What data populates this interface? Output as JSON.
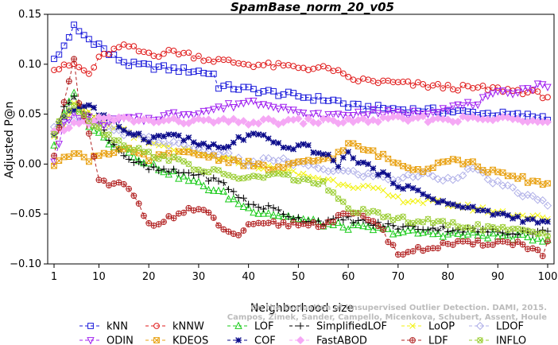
{
  "chart_data": {
    "type": "line",
    "title": "SpamBase_norm_20_v05",
    "xlabel": "Neighborhood size",
    "ylabel": "Adjusted P@n",
    "xlim": [
      1,
      100
    ],
    "ylim": [
      -0.1,
      0.15
    ],
    "xticks": [
      1,
      10,
      20,
      30,
      40,
      50,
      60,
      70,
      80,
      90,
      100
    ],
    "yticks": [
      -0.1,
      -0.05,
      0.0,
      0.05,
      0.1,
      0.15
    ],
    "ytick_labels": [
      "−0.10",
      "−0.05",
      "0.00",
      "0.05",
      "0.10",
      "0.15"
    ],
    "legend_position": "bottom",
    "watermark": [
      "Campos, Zimek, Sander, Campello, Micenkova, Schubert, Assent, Houle",
      "On the Evaluation of Unsupervised Outlier Detection. DAMI, 2015."
    ],
    "series": [
      {
        "name": "kNN",
        "color": "#1a1adb",
        "marker": "square",
        "knots": [
          [
            1,
            0.105
          ],
          [
            2,
            0.11
          ],
          [
            3,
            0.12
          ],
          [
            4,
            0.125
          ],
          [
            5,
            0.138
          ],
          [
            6,
            0.133
          ],
          [
            8,
            0.125
          ],
          [
            10,
            0.12
          ],
          [
            12,
            0.11
          ],
          [
            16,
            0.1
          ],
          [
            20,
            0.098
          ],
          [
            25,
            0.095
          ],
          [
            30,
            0.093
          ],
          [
            33,
            0.09
          ],
          [
            34,
            0.078
          ],
          [
            40,
            0.075
          ],
          [
            50,
            0.068
          ],
          [
            58,
            0.063
          ],
          [
            60,
            0.058
          ],
          [
            70,
            0.055
          ],
          [
            80,
            0.053
          ],
          [
            90,
            0.05
          ],
          [
            100,
            0.047
          ]
        ]
      },
      {
        "name": "kNNW",
        "color": "#e01b1b",
        "marker": "circle",
        "knots": [
          [
            1,
            0.095
          ],
          [
            3,
            0.097
          ],
          [
            5,
            0.1
          ],
          [
            8,
            0.09
          ],
          [
            10,
            0.105
          ],
          [
            12,
            0.112
          ],
          [
            14,
            0.116
          ],
          [
            16,
            0.118
          ],
          [
            18,
            0.113
          ],
          [
            22,
            0.11
          ],
          [
            25,
            0.113
          ],
          [
            28,
            0.11
          ],
          [
            32,
            0.105
          ],
          [
            40,
            0.1
          ],
          [
            50,
            0.097
          ],
          [
            57,
            0.095
          ],
          [
            60,
            0.085
          ],
          [
            70,
            0.081
          ],
          [
            80,
            0.077
          ],
          [
            90,
            0.075
          ],
          [
            95,
            0.073
          ],
          [
            100,
            0.068
          ]
        ]
      },
      {
        "name": "LOF",
        "color": "#1acb1a",
        "marker": "triangle-up",
        "knots": [
          [
            1,
            0.02
          ],
          [
            3,
            0.05
          ],
          [
            5,
            0.07
          ],
          [
            7,
            0.045
          ],
          [
            10,
            0.03
          ],
          [
            12,
            0.022
          ],
          [
            15,
            0.015
          ],
          [
            20,
            0.0
          ],
          [
            25,
            -0.01
          ],
          [
            30,
            -0.02
          ],
          [
            35,
            -0.03
          ],
          [
            40,
            -0.045
          ],
          [
            45,
            -0.05
          ],
          [
            50,
            -0.055
          ],
          [
            55,
            -0.06
          ],
          [
            60,
            -0.063
          ],
          [
            65,
            -0.065
          ],
          [
            70,
            -0.068
          ],
          [
            80,
            -0.07
          ],
          [
            90,
            -0.072
          ],
          [
            100,
            -0.075
          ]
        ]
      },
      {
        "name": "SimplifiedLOF",
        "color": "#000000",
        "marker": "plus",
        "knots": [
          [
            1,
            0.03
          ],
          [
            3,
            0.06
          ],
          [
            5,
            0.065
          ],
          [
            8,
            0.05
          ],
          [
            10,
            0.04
          ],
          [
            13,
            0.02
          ],
          [
            16,
            0.005
          ],
          [
            20,
            -0.005
          ],
          [
            25,
            -0.008
          ],
          [
            30,
            -0.01
          ],
          [
            35,
            -0.02
          ],
          [
            40,
            -0.04
          ],
          [
            45,
            -0.045
          ],
          [
            50,
            -0.055
          ],
          [
            55,
            -0.058
          ],
          [
            60,
            -0.055
          ],
          [
            65,
            -0.06
          ],
          [
            70,
            -0.063
          ],
          [
            80,
            -0.065
          ],
          [
            90,
            -0.068
          ],
          [
            100,
            -0.068
          ]
        ]
      },
      {
        "name": "LoOP",
        "color": "#f2f20d",
        "marker": "cross",
        "knots": [
          [
            1,
            0.03
          ],
          [
            3,
            0.04
          ],
          [
            5,
            0.06
          ],
          [
            8,
            0.05
          ],
          [
            10,
            0.04
          ],
          [
            15,
            0.035
          ],
          [
            20,
            0.02
          ],
          [
            25,
            0.015
          ],
          [
            30,
            0.01
          ],
          [
            35,
            0.005
          ],
          [
            40,
            0.0
          ],
          [
            45,
            -0.005
          ],
          [
            50,
            -0.01
          ],
          [
            55,
            -0.015
          ],
          [
            60,
            -0.02
          ],
          [
            65,
            -0.025
          ],
          [
            70,
            -0.035
          ],
          [
            80,
            -0.04
          ],
          [
            90,
            -0.048
          ],
          [
            100,
            -0.055
          ]
        ]
      },
      {
        "name": "LDOF",
        "color": "#b0b0e8",
        "marker": "diamond",
        "knots": [
          [
            1,
            0.04
          ],
          [
            5,
            0.045
          ],
          [
            10,
            0.04
          ],
          [
            15,
            0.03
          ],
          [
            20,
            0.025
          ],
          [
            25,
            0.02
          ],
          [
            30,
            0.015
          ],
          [
            35,
            0.01
          ],
          [
            40,
            0.0
          ],
          [
            45,
            0.005
          ],
          [
            50,
            0.0
          ],
          [
            55,
            -0.005
          ],
          [
            60,
            -0.008
          ],
          [
            65,
            -0.012
          ],
          [
            70,
            -0.015
          ],
          [
            75,
            -0.01
          ],
          [
            80,
            -0.015
          ],
          [
            85,
            -0.005
          ],
          [
            90,
            -0.02
          ],
          [
            95,
            -0.03
          ],
          [
            100,
            -0.04
          ]
        ]
      },
      {
        "name": "ODIN",
        "color": "#a020f0",
        "marker": "triangle-down",
        "knots": [
          [
            1,
            0.0
          ],
          [
            3,
            0.04
          ],
          [
            5,
            0.05
          ],
          [
            8,
            0.045
          ],
          [
            10,
            0.04
          ],
          [
            15,
            0.045
          ],
          [
            20,
            0.045
          ],
          [
            25,
            0.05
          ],
          [
            30,
            0.052
          ],
          [
            35,
            0.057
          ],
          [
            40,
            0.063
          ],
          [
            45,
            0.06
          ],
          [
            48,
            0.055
          ],
          [
            50,
            0.05
          ],
          [
            55,
            0.048
          ],
          [
            60,
            0.05
          ],
          [
            65,
            0.052
          ],
          [
            70,
            0.05
          ],
          [
            75,
            0.052
          ],
          [
            80,
            0.057
          ],
          [
            85,
            0.06
          ],
          [
            90,
            0.07
          ],
          [
            95,
            0.075
          ],
          [
            100,
            0.08
          ]
        ]
      },
      {
        "name": "KDEOS",
        "color": "#e8a010",
        "marker": "square-x",
        "knots": [
          [
            1,
            0.0
          ],
          [
            3,
            0.01
          ],
          [
            5,
            0.01
          ],
          [
            8,
            0.005
          ],
          [
            10,
            0.01
          ],
          [
            15,
            0.015
          ],
          [
            20,
            0.005
          ],
          [
            25,
            0.01
          ],
          [
            30,
            0.01
          ],
          [
            35,
            0.005
          ],
          [
            40,
            0.0
          ],
          [
            45,
            -0.005
          ],
          [
            50,
            0.0
          ],
          [
            55,
            0.005
          ],
          [
            58,
            0.01
          ],
          [
            60,
            0.02
          ],
          [
            63,
            0.015
          ],
          [
            66,
            0.01
          ],
          [
            70,
            0.0
          ],
          [
            75,
            -0.005
          ],
          [
            80,
            0.005
          ],
          [
            85,
            0.0
          ],
          [
            90,
            -0.01
          ],
          [
            95,
            -0.015
          ],
          [
            100,
            -0.02
          ]
        ]
      },
      {
        "name": "COF",
        "color": "#0a0a8a",
        "marker": "asterisk",
        "knots": [
          [
            1,
            0.03
          ],
          [
            3,
            0.05
          ],
          [
            5,
            0.055
          ],
          [
            8,
            0.06
          ],
          [
            10,
            0.05
          ],
          [
            15,
            0.035
          ],
          [
            20,
            0.025
          ],
          [
            25,
            0.03
          ],
          [
            30,
            0.02
          ],
          [
            35,
            0.015
          ],
          [
            38,
            0.025
          ],
          [
            42,
            0.03
          ],
          [
            45,
            0.02
          ],
          [
            48,
            0.015
          ],
          [
            50,
            0.02
          ],
          [
            55,
            0.01
          ],
          [
            58,
            0.0
          ],
          [
            60,
            0.01
          ],
          [
            65,
            -0.005
          ],
          [
            70,
            -0.02
          ],
          [
            75,
            -0.03
          ],
          [
            80,
            -0.04
          ],
          [
            85,
            -0.045
          ],
          [
            90,
            -0.05
          ],
          [
            95,
            -0.055
          ],
          [
            100,
            -0.06
          ]
        ]
      },
      {
        "name": "FastABOD",
        "color": "#f5a8f5",
        "marker": "diamond-filled",
        "knots": [
          [
            1,
            0.03
          ],
          [
            5,
            0.04
          ],
          [
            10,
            0.045
          ],
          [
            15,
            0.045
          ],
          [
            20,
            0.043
          ],
          [
            30,
            0.043
          ],
          [
            40,
            0.042
          ],
          [
            50,
            0.043
          ],
          [
            60,
            0.043
          ],
          [
            70,
            0.045
          ],
          [
            80,
            0.045
          ],
          [
            90,
            0.045
          ],
          [
            100,
            0.045
          ]
        ]
      },
      {
        "name": "LDF",
        "color": "#b22222",
        "marker": "circle-plus",
        "knots": [
          [
            1,
            0.01
          ],
          [
            3,
            0.06
          ],
          [
            4,
            0.08
          ],
          [
            5,
            0.105
          ],
          [
            6,
            0.06
          ],
          [
            8,
            0.03
          ],
          [
            10,
            -0.015
          ],
          [
            12,
            -0.022
          ],
          [
            15,
            -0.02
          ],
          [
            18,
            -0.04
          ],
          [
            20,
            -0.06
          ],
          [
            24,
            -0.055
          ],
          [
            28,
            -0.045
          ],
          [
            32,
            -0.05
          ],
          [
            36,
            -0.07
          ],
          [
            38,
            -0.07
          ],
          [
            40,
            -0.063
          ],
          [
            45,
            -0.06
          ],
          [
            50,
            -0.06
          ],
          [
            55,
            -0.06
          ],
          [
            60,
            -0.05
          ],
          [
            65,
            -0.055
          ],
          [
            68,
            -0.075
          ],
          [
            70,
            -0.09
          ],
          [
            75,
            -0.085
          ],
          [
            78,
            -0.082
          ],
          [
            80,
            -0.08
          ],
          [
            85,
            -0.08
          ],
          [
            90,
            -0.078
          ],
          [
            95,
            -0.08
          ],
          [
            99,
            -0.09
          ],
          [
            100,
            -0.08
          ]
        ]
      },
      {
        "name": "INFLO",
        "color": "#9acd32",
        "marker": "x-circle",
        "knots": [
          [
            1,
            0.03
          ],
          [
            3,
            0.05
          ],
          [
            5,
            0.06
          ],
          [
            8,
            0.045
          ],
          [
            10,
            0.035
          ],
          [
            15,
            0.02
          ],
          [
            20,
            0.01
          ],
          [
            25,
            0.005
          ],
          [
            30,
            -0.005
          ],
          [
            35,
            -0.01
          ],
          [
            40,
            -0.015
          ],
          [
            45,
            -0.01
          ],
          [
            50,
            -0.015
          ],
          [
            55,
            -0.02
          ],
          [
            60,
            -0.045
          ],
          [
            65,
            -0.05
          ],
          [
            70,
            -0.055
          ],
          [
            80,
            -0.06
          ],
          [
            90,
            -0.065
          ],
          [
            100,
            -0.07
          ]
        ]
      }
    ]
  }
}
